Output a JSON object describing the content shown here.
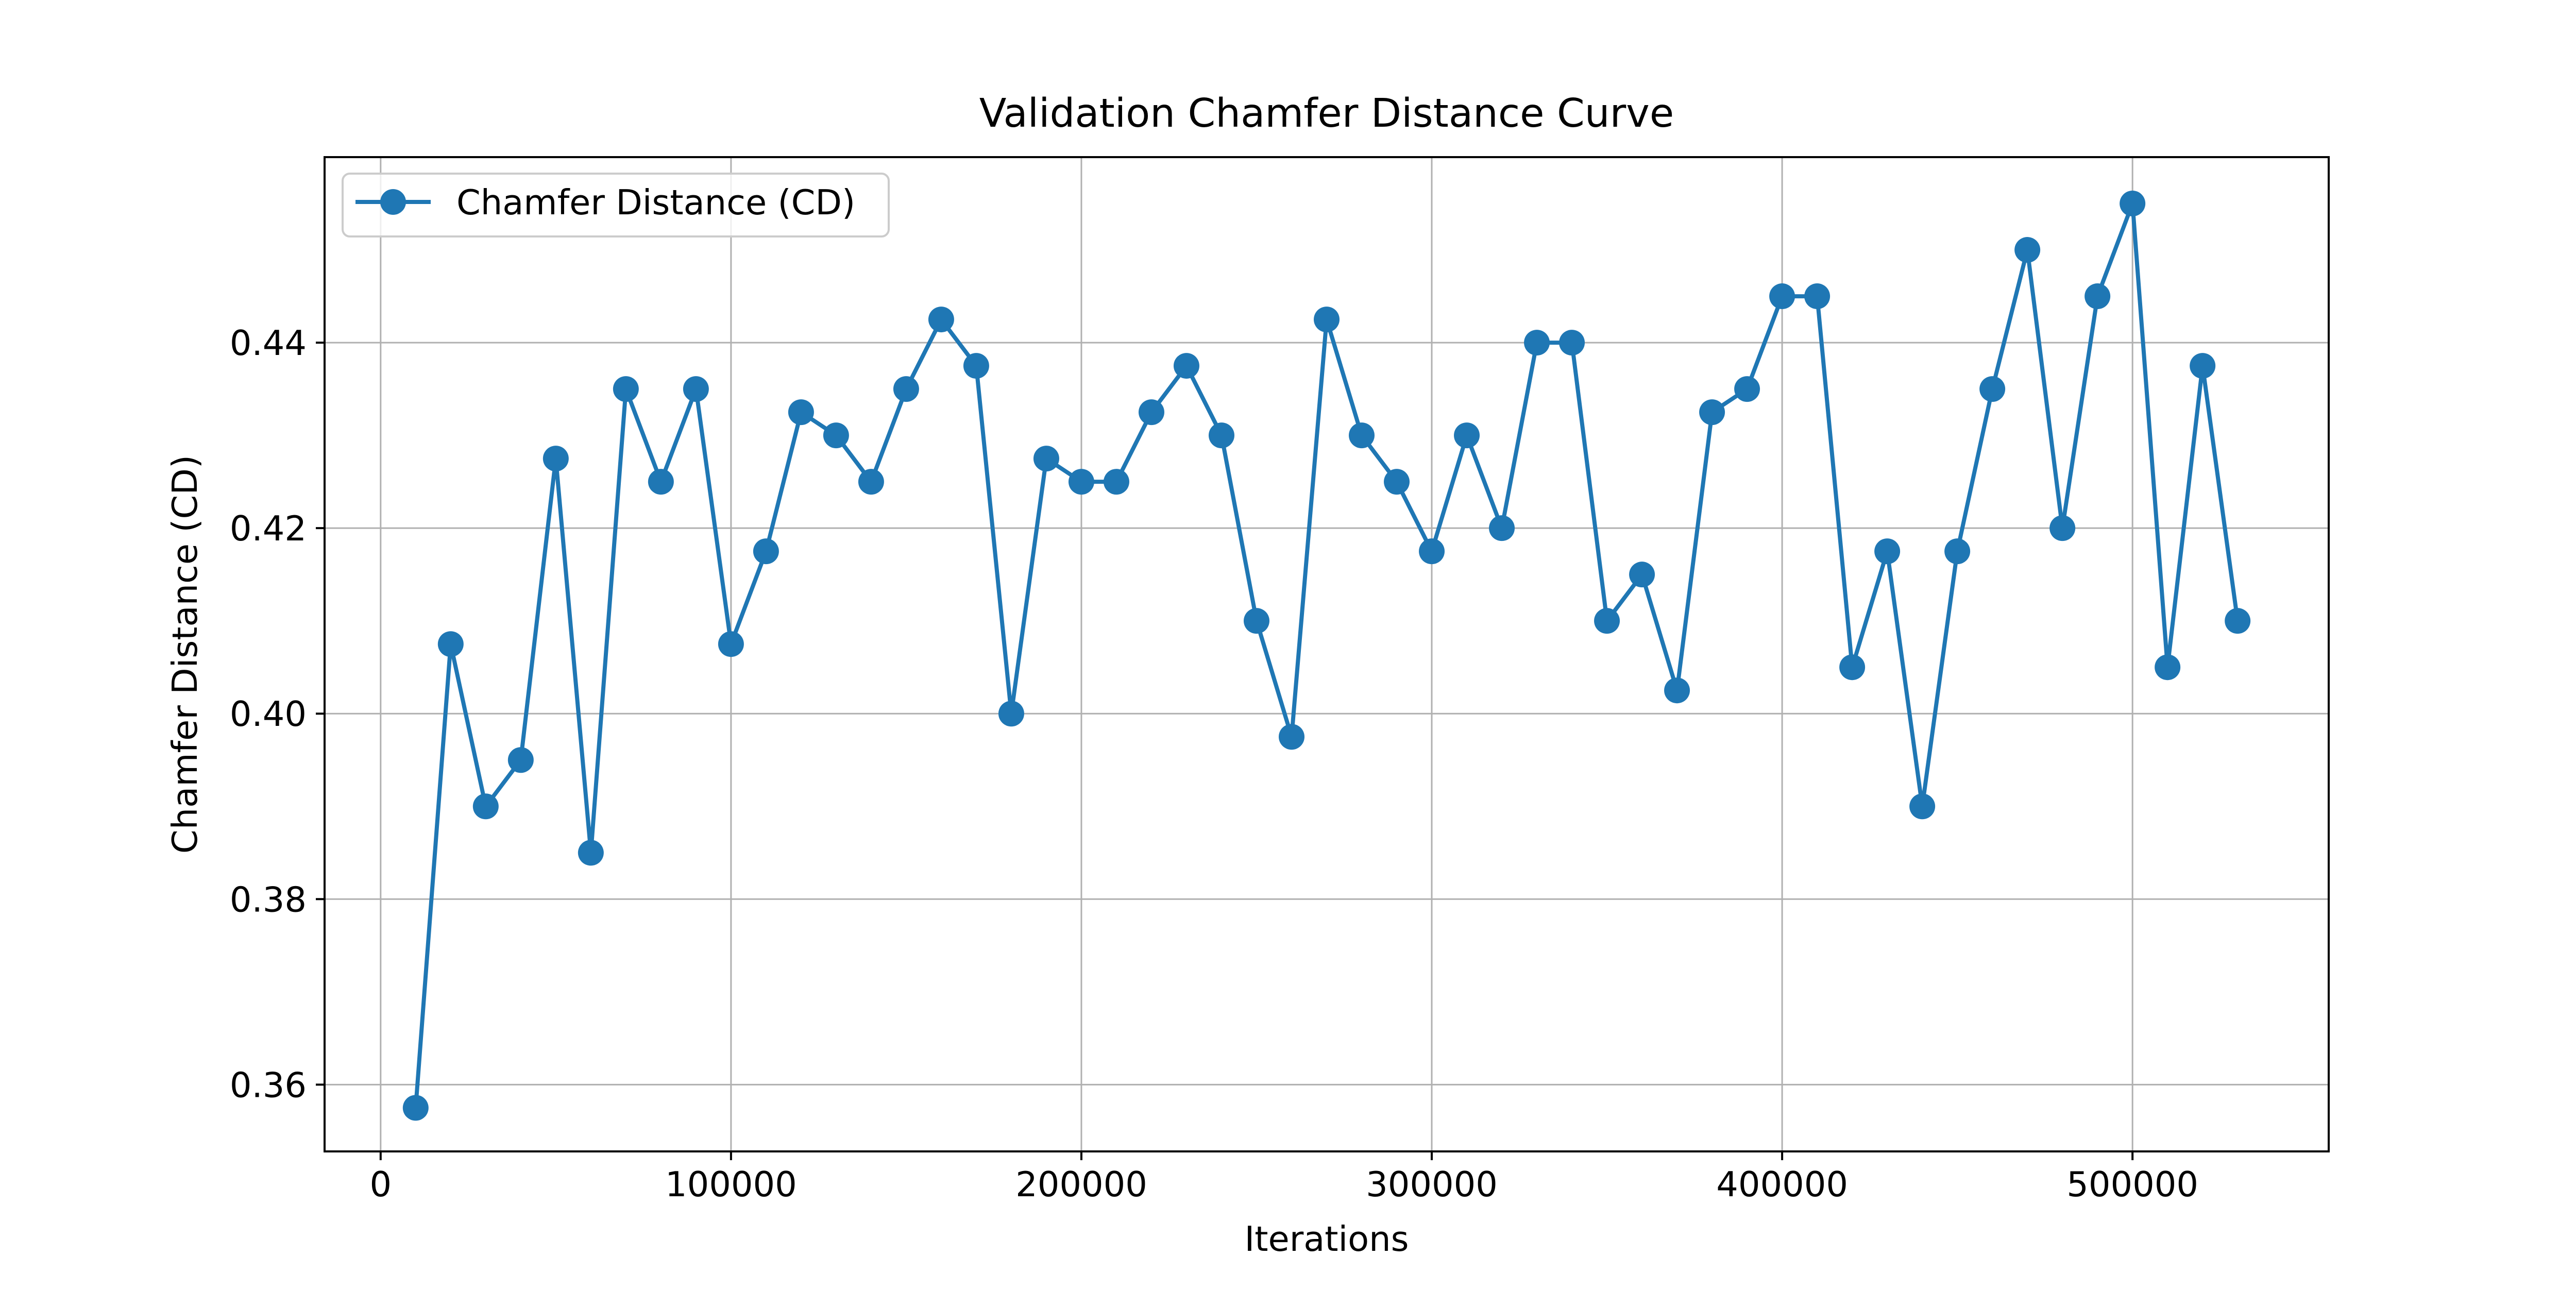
{
  "chart_data": {
    "type": "line",
    "title": "Validation Chamfer Distance Curve",
    "xlabel": "Iterations",
    "ylabel": "Chamfer Distance (CD)",
    "xlim": [
      -16000,
      556000
    ],
    "ylim": [
      0.3528,
      0.46
    ],
    "x_ticks": [
      0,
      100000,
      200000,
      300000,
      400000,
      500000
    ],
    "y_ticks": [
      0.36,
      0.38,
      0.4,
      0.42,
      0.44
    ],
    "y_tick_labels": [
      "0.36",
      "0.38",
      "0.40",
      "0.42",
      "0.44"
    ],
    "grid": true,
    "legend_position": "top-left",
    "series": [
      {
        "name": "Chamfer Distance (CD)",
        "color": "#1f77b4",
        "marker": "circle",
        "x": [
          10000,
          20000,
          30000,
          40000,
          50000,
          60000,
          70000,
          80000,
          90000,
          100000,
          110000,
          120000,
          130000,
          140000,
          150000,
          160000,
          170000,
          180000,
          190000,
          200000,
          210000,
          220000,
          230000,
          240000,
          250000,
          260000,
          270000,
          280000,
          290000,
          300000,
          310000,
          320000,
          330000,
          340000,
          350000,
          360000,
          370000,
          380000,
          390000,
          400000,
          410000,
          420000,
          430000,
          440000,
          450000,
          460000,
          470000,
          480000,
          490000,
          500000,
          510000,
          520000,
          530000
        ],
        "y": [
          0.3575,
          0.4075,
          0.39,
          0.395,
          0.4275,
          0.385,
          0.435,
          0.425,
          0.435,
          0.4075,
          0.4175,
          0.4325,
          0.43,
          0.425,
          0.435,
          0.4425,
          0.4375,
          0.4,
          0.4275,
          0.425,
          0.425,
          0.4325,
          0.4375,
          0.43,
          0.41,
          0.3975,
          0.4425,
          0.43,
          0.425,
          0.4175,
          0.43,
          0.42,
          0.44,
          0.44,
          0.41,
          0.415,
          0.4025,
          0.4325,
          0.435,
          0.445,
          0.445,
          0.405,
          0.4175,
          0.39,
          0.4175,
          0.435,
          0.45,
          0.42,
          0.445,
          0.455,
          0.405,
          0.4375,
          0.41
        ]
      }
    ]
  }
}
